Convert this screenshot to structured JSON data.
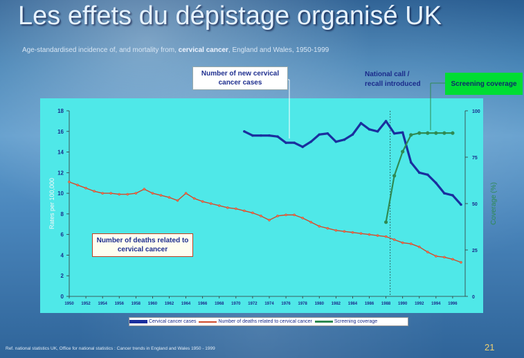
{
  "slide": {
    "title": "Les effets du dépistage organisé UK",
    "subtitle_prefix": "Age-standardised incidence of, and mortality from,",
    "subtitle_bold": "cervical cancer",
    "subtitle_suffix": ", England and Wales, 1950-1999",
    "reference": "Ref. national statistics UK, Office for national statistics : Cancer trends in England and Wales 1950 - 1999",
    "page_number": "21"
  },
  "annotations": {
    "new_cases": "Number of new cervical cancer cases",
    "deaths": "Number of deaths related to cervical cancer",
    "national_call_line1": "National call /",
    "national_call_line2": "recall introduced",
    "screening_coverage": "Screening coverage"
  },
  "colors": {
    "incidence": "#1a2f9e",
    "mortality": "#d04a2a",
    "coverage": "#2f8a52",
    "plot_background": "#4fe8e8",
    "callout_box": "#00dd33"
  },
  "chart_data": {
    "type": "line",
    "title": "",
    "xlabel": "",
    "ylabel": "Rates per 100,000",
    "y2label": "Coverage (%)",
    "ylim": [
      0,
      18
    ],
    "y2lim": [
      0,
      100
    ],
    "x_tick_labels": [
      "1950",
      "1952",
      "1954",
      "1956",
      "1958",
      "1960",
      "1962",
      "1964",
      "1966",
      "1968",
      "1970",
      "1972",
      "1974",
      "1976",
      "1978",
      "1980",
      "1982",
      "1984",
      "1986",
      "1988",
      "1990",
      "1992",
      "1994",
      "1996"
    ],
    "y_tick_labels": [
      "0",
      "2",
      "4",
      "6",
      "8",
      "10",
      "12",
      "14",
      "16",
      "18"
    ],
    "y2_tick_labels": [
      "0",
      "25",
      "50",
      "75",
      "100"
    ],
    "grid": false,
    "legend_position": "bottom",
    "reference_line_x": 1988.5,
    "series": [
      {
        "name": "Cervical cancer cases",
        "axis": "left",
        "x": [
          1971,
          1972,
          1973,
          1974,
          1975,
          1976,
          1977,
          1978,
          1979,
          1980,
          1981,
          1982,
          1983,
          1984,
          1985,
          1986,
          1987,
          1988,
          1989,
          1990,
          1991,
          1992,
          1993,
          1994,
          1995,
          1996,
          1997
        ],
        "y": [
          16.0,
          15.6,
          15.6,
          15.6,
          15.5,
          14.9,
          14.9,
          14.5,
          15.0,
          15.7,
          15.8,
          15.0,
          15.2,
          15.7,
          16.8,
          16.2,
          16.0,
          17.0,
          15.8,
          15.9,
          13.0,
          12.0,
          11.8,
          11.0,
          10.0,
          9.8,
          8.9
        ]
      },
      {
        "name": "Number of deaths related to cervical cancer",
        "axis": "left",
        "x": [
          1950,
          1951,
          1952,
          1953,
          1954,
          1955,
          1956,
          1957,
          1958,
          1959,
          1960,
          1961,
          1962,
          1963,
          1964,
          1965,
          1966,
          1967,
          1968,
          1969,
          1970,
          1971,
          1972,
          1973,
          1974,
          1975,
          1976,
          1977,
          1978,
          1979,
          1980,
          1981,
          1982,
          1983,
          1984,
          1985,
          1986,
          1987,
          1988,
          1989,
          1990,
          1991,
          1992,
          1993,
          1994,
          1995,
          1996,
          1997
        ],
        "y": [
          11.1,
          10.8,
          10.5,
          10.2,
          10.0,
          10.0,
          9.9,
          9.9,
          10.0,
          10.4,
          10.0,
          9.8,
          9.6,
          9.3,
          10.0,
          9.5,
          9.2,
          9.0,
          8.8,
          8.6,
          8.5,
          8.3,
          8.1,
          7.8,
          7.4,
          7.8,
          7.9,
          7.9,
          7.6,
          7.2,
          6.8,
          6.6,
          6.4,
          6.3,
          6.2,
          6.1,
          6.0,
          5.9,
          5.8,
          5.5,
          5.2,
          5.1,
          4.8,
          4.3,
          3.9,
          3.8,
          3.6,
          3.3
        ]
      },
      {
        "name": "Screening coverage",
        "axis": "right",
        "x": [
          1988,
          1989,
          1990,
          1991,
          1992,
          1993,
          1994,
          1995,
          1996
        ],
        "y": [
          40,
          65,
          78,
          87,
          88,
          88,
          88,
          88,
          88
        ]
      }
    ]
  }
}
